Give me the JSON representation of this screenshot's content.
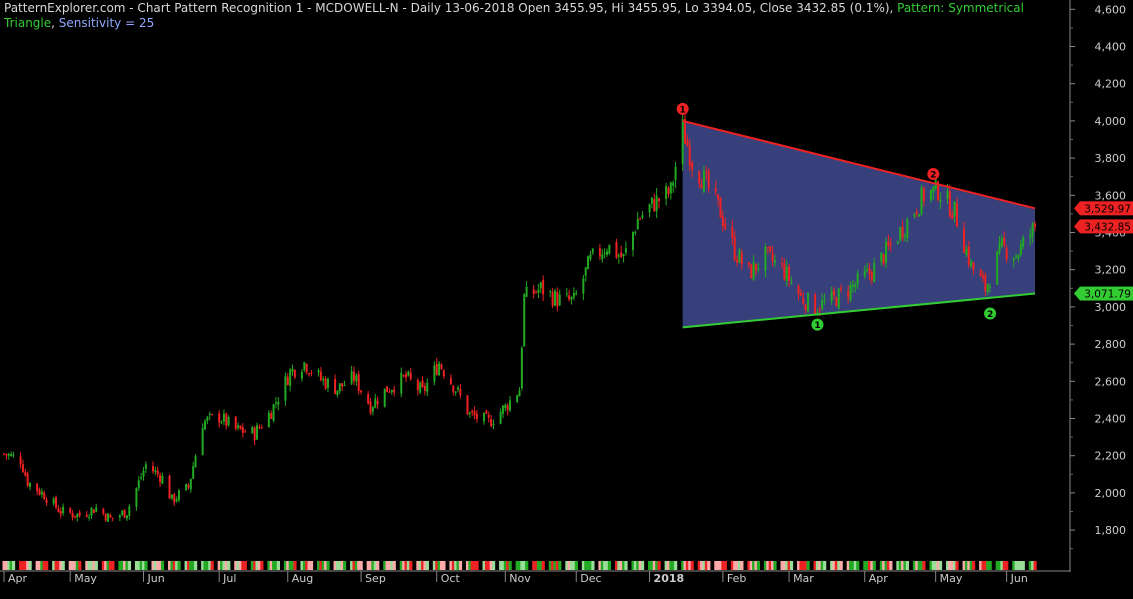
{
  "header": {
    "title": "PatternExplorer.com - Chart Pattern Recognition 1  - MCDOWELL-N - Daily 13-06-2018 Open 3455.95, Hi 3455.95, Lo 3394.05, Close 3432.85 (0.1%)",
    "separator": ", ",
    "pattern": "Pattern: Symmetrical Triangle",
    "sensitivity": "Sensitivity = 25"
  },
  "chart_data": {
    "type": "candlestick",
    "title": "MCDOWELL-N - Daily",
    "x_start": "2017-04",
    "y_axis": {
      "ticks": [
        1800,
        2000,
        2200,
        2400,
        2600,
        2800,
        3000,
        3200,
        3400,
        3600,
        3800,
        4000,
        4200,
        4400,
        4600
      ],
      "tick_labels": [
        "1,800",
        "2,000",
        "2,200",
        "2,400",
        "2,600",
        "2,800",
        "3,000",
        "3,200",
        "3,400",
        "3,600",
        "3,800",
        "4,000",
        "4,200",
        "4,400",
        "4,600"
      ],
      "ylim": [
        1650,
        4650
      ],
      "position": "right"
    },
    "x_labels": [
      "Apr",
      "May",
      "Jun",
      "Jul",
      "Aug",
      "Sep",
      "Oct",
      "Nov",
      "Dec",
      "2018",
      "Feb",
      "Mar",
      "Apr",
      "May",
      "Jun"
    ],
    "price_path": [
      [
        "2017-04-03",
        2210
      ],
      [
        "2017-04-10",
        2180
      ],
      [
        "2017-04-13",
        2060
      ],
      [
        "2017-04-20",
        1990
      ],
      [
        "2017-04-27",
        1900
      ],
      [
        "2017-05-05",
        1880
      ],
      [
        "2017-05-12",
        1920
      ],
      [
        "2017-05-18",
        1860
      ],
      [
        "2017-05-25",
        1900
      ],
      [
        "2017-06-02",
        2150
      ],
      [
        "2017-06-09",
        2080
      ],
      [
        "2017-06-13",
        1960
      ],
      [
        "2017-06-20",
        2030
      ],
      [
        "2017-06-26",
        2380
      ],
      [
        "2017-07-03",
        2410
      ],
      [
        "2017-07-10",
        2340
      ],
      [
        "2017-07-18",
        2320
      ],
      [
        "2017-07-25",
        2440
      ],
      [
        "2017-08-02",
        2650
      ],
      [
        "2017-08-08",
        2700
      ],
      [
        "2017-08-15",
        2610
      ],
      [
        "2017-08-22",
        2560
      ],
      [
        "2017-08-29",
        2620
      ],
      [
        "2017-09-05",
        2470
      ],
      [
        "2017-09-12",
        2560
      ],
      [
        "2017-09-20",
        2620
      ],
      [
        "2017-09-27",
        2540
      ],
      [
        "2017-10-04",
        2700
      ],
      [
        "2017-10-11",
        2560
      ],
      [
        "2017-10-17",
        2420
      ],
      [
        "2017-10-25",
        2380
      ],
      [
        "2017-11-01",
        2460
      ],
      [
        "2017-11-07",
        2560
      ],
      [
        "2017-11-09",
        3050
      ],
      [
        "2017-11-16",
        3100
      ],
      [
        "2017-11-23",
        3040
      ],
      [
        "2017-11-30",
        3030
      ],
      [
        "2017-12-07",
        3250
      ],
      [
        "2017-12-14",
        3330
      ],
      [
        "2017-12-21",
        3260
      ],
      [
        "2017-12-27",
        3470
      ],
      [
        "2018-01-03",
        3560
      ],
      [
        "2018-01-10",
        3620
      ],
      [
        "2018-01-15",
        3960
      ],
      [
        "2018-01-19",
        3780
      ],
      [
        "2018-01-25",
        3660
      ],
      [
        "2018-01-31",
        3510
      ],
      [
        "2018-02-06",
        3300
      ],
      [
        "2018-02-12",
        3180
      ],
      [
        "2018-02-19",
        3270
      ],
      [
        "2018-02-26",
        3210
      ],
      [
        "2018-03-06",
        3050
      ],
      [
        "2018-03-12",
        3000
      ],
      [
        "2018-03-20",
        3040
      ],
      [
        "2018-03-28",
        3110
      ],
      [
        "2018-04-05",
        3190
      ],
      [
        "2018-04-12",
        3310
      ],
      [
        "2018-04-20",
        3460
      ],
      [
        "2018-04-27",
        3600
      ],
      [
        "2018-05-03",
        3630
      ],
      [
        "2018-05-10",
        3510
      ],
      [
        "2018-05-17",
        3220
      ],
      [
        "2018-05-23",
        3100
      ],
      [
        "2018-05-30",
        3320
      ],
      [
        "2018-06-05",
        3280
      ],
      [
        "2018-06-13",
        3432.85
      ]
    ],
    "pattern": {
      "name": "Symmetrical Triangle",
      "upper_line": {
        "start": [
          "2018-01-15",
          4000
        ],
        "end": [
          "2018-06-13",
          3529.97
        ],
        "color": "#ee2222"
      },
      "lower_line": {
        "start": [
          "2018-01-15",
          2890
        ],
        "end": [
          "2018-06-13",
          3071.79
        ],
        "color": "#33cc33"
      },
      "fill": "#3a4382",
      "upper_pivots": [
        {
          "label": "1",
          "at": [
            "2018-01-15",
            4000
          ]
        },
        {
          "label": "2",
          "at": [
            "2018-05-01",
            3650
          ]
        }
      ],
      "lower_pivots": [
        {
          "label": "1",
          "at": [
            "2018-03-13",
            2980
          ]
        },
        {
          "label": "2",
          "at": [
            "2018-05-25",
            3040
          ]
        }
      ]
    },
    "price_tags": [
      {
        "label": "3,529.97",
        "value": 3529.97,
        "color": "#ee2222"
      },
      {
        "label": "3,432.85",
        "value": 3432.85,
        "color": "#ee2222"
      },
      {
        "label": "3,071.79",
        "value": 3071.79,
        "color": "#33cc33"
      }
    ],
    "colors": {
      "up": "#22aa22",
      "down": "#ee2222",
      "background": "#000000",
      "axis_text": "#cccccc"
    }
  }
}
